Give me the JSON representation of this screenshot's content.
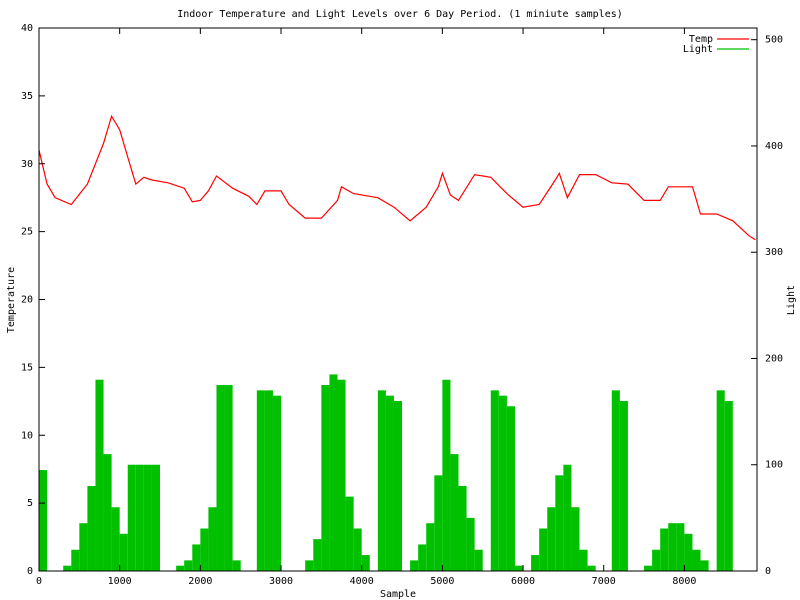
{
  "chart_data": {
    "type": "line",
    "title": "Indoor Temperature and Light Levels over 6 Day Period. (1 miniute samples)",
    "x_label": "Sample",
    "y_label": "Temperature",
    "y2_label": "Light",
    "xlim": [
      0,
      8900
    ],
    "xticks": [
      0,
      1000,
      2000,
      3000,
      4000,
      5000,
      6000,
      7000,
      8000
    ],
    "ylim": [
      0,
      40
    ],
    "yticks": [
      0,
      5,
      10,
      15,
      20,
      25,
      30,
      35,
      40
    ],
    "y2lim": [
      0,
      511
    ],
    "y2ticks": [
      0,
      100,
      200,
      300,
      400,
      500
    ],
    "legend": "top right",
    "series": [
      {
        "name": "Temp",
        "color": "#ff0000",
        "style": "line",
        "x": [
          0,
          100,
          200,
          400,
          600,
          800,
          900,
          1000,
          1100,
          1200,
          1300,
          1400,
          1600,
          1800,
          1900,
          2000,
          2100,
          2200,
          2400,
          2600,
          2700,
          2800,
          3000,
          3100,
          3300,
          3500,
          3700,
          3750,
          3900,
          4200,
          4400,
          4600,
          4800,
          4950,
          5000,
          5100,
          5200,
          5400,
          5600,
          5800,
          6000,
          6200,
          6400,
          6450,
          6550,
          6700,
          6900,
          7100,
          7300,
          7500,
          7700,
          7800,
          8100,
          8200,
          8400,
          8600,
          8800,
          8880
        ],
        "values": [
          31,
          28.5,
          27.5,
          27,
          28.5,
          31.5,
          33.5,
          32.5,
          30.5,
          28.5,
          29,
          28.8,
          28.6,
          28.2,
          27.2,
          27.3,
          28,
          29.1,
          28.2,
          27.6,
          27,
          28,
          28,
          27,
          26,
          26,
          27.3,
          28.3,
          27.8,
          27.5,
          26.8,
          25.8,
          26.8,
          28.3,
          29.3,
          27.7,
          27.3,
          29.2,
          29,
          27.8,
          26.8,
          27,
          28.8,
          29.3,
          27.5,
          29.2,
          29.2,
          28.6,
          28.5,
          27.3,
          27.3,
          28.3,
          28.3,
          26.3,
          26.3,
          25.8,
          24.7,
          24.4
        ]
      },
      {
        "name": "Light",
        "color": "#00c000",
        "style": "impulses",
        "axis": "y2",
        "x": [
          0,
          100,
          200,
          300,
          400,
          500,
          600,
          700,
          800,
          900,
          1000,
          1100,
          1200,
          1300,
          1400,
          1500,
          1600,
          1700,
          1800,
          1900,
          2000,
          2100,
          2200,
          2300,
          2400,
          2500,
          2600,
          2700,
          2800,
          2900,
          3000,
          3100,
          3200,
          3300,
          3400,
          3500,
          3600,
          3700,
          3800,
          3900,
          4000,
          4100,
          4200,
          4300,
          4400,
          4500,
          4600,
          4700,
          4800,
          4900,
          5000,
          5100,
          5200,
          5300,
          5400,
          5500,
          5600,
          5700,
          5800,
          5900,
          6000,
          6100,
          6200,
          6300,
          6400,
          6500,
          6600,
          6700,
          6800,
          6900,
          7000,
          7100,
          7200,
          7300,
          7400,
          7500,
          7600,
          7700,
          7800,
          7900,
          8000,
          8100,
          8200,
          8300,
          8400,
          8500,
          8600,
          8700,
          8800
        ],
        "values": [
          95,
          0,
          0,
          5,
          20,
          45,
          80,
          180,
          110,
          60,
          35,
          100,
          100,
          100,
          100,
          0,
          0,
          5,
          10,
          25,
          40,
          60,
          175,
          175,
          10,
          0,
          0,
          170,
          170,
          165,
          0,
          0,
          0,
          10,
          30,
          175,
          185,
          180,
          70,
          40,
          15,
          0,
          170,
          165,
          160,
          0,
          10,
          25,
          45,
          90,
          180,
          110,
          80,
          50,
          20,
          0,
          170,
          165,
          155,
          5,
          0,
          15,
          40,
          60,
          90,
          100,
          60,
          20,
          5,
          0,
          0,
          170,
          160,
          0,
          0,
          5,
          20,
          40,
          45,
          45,
          35,
          20,
          10,
          0,
          170,
          160,
          0,
          0,
          0
        ]
      }
    ]
  }
}
